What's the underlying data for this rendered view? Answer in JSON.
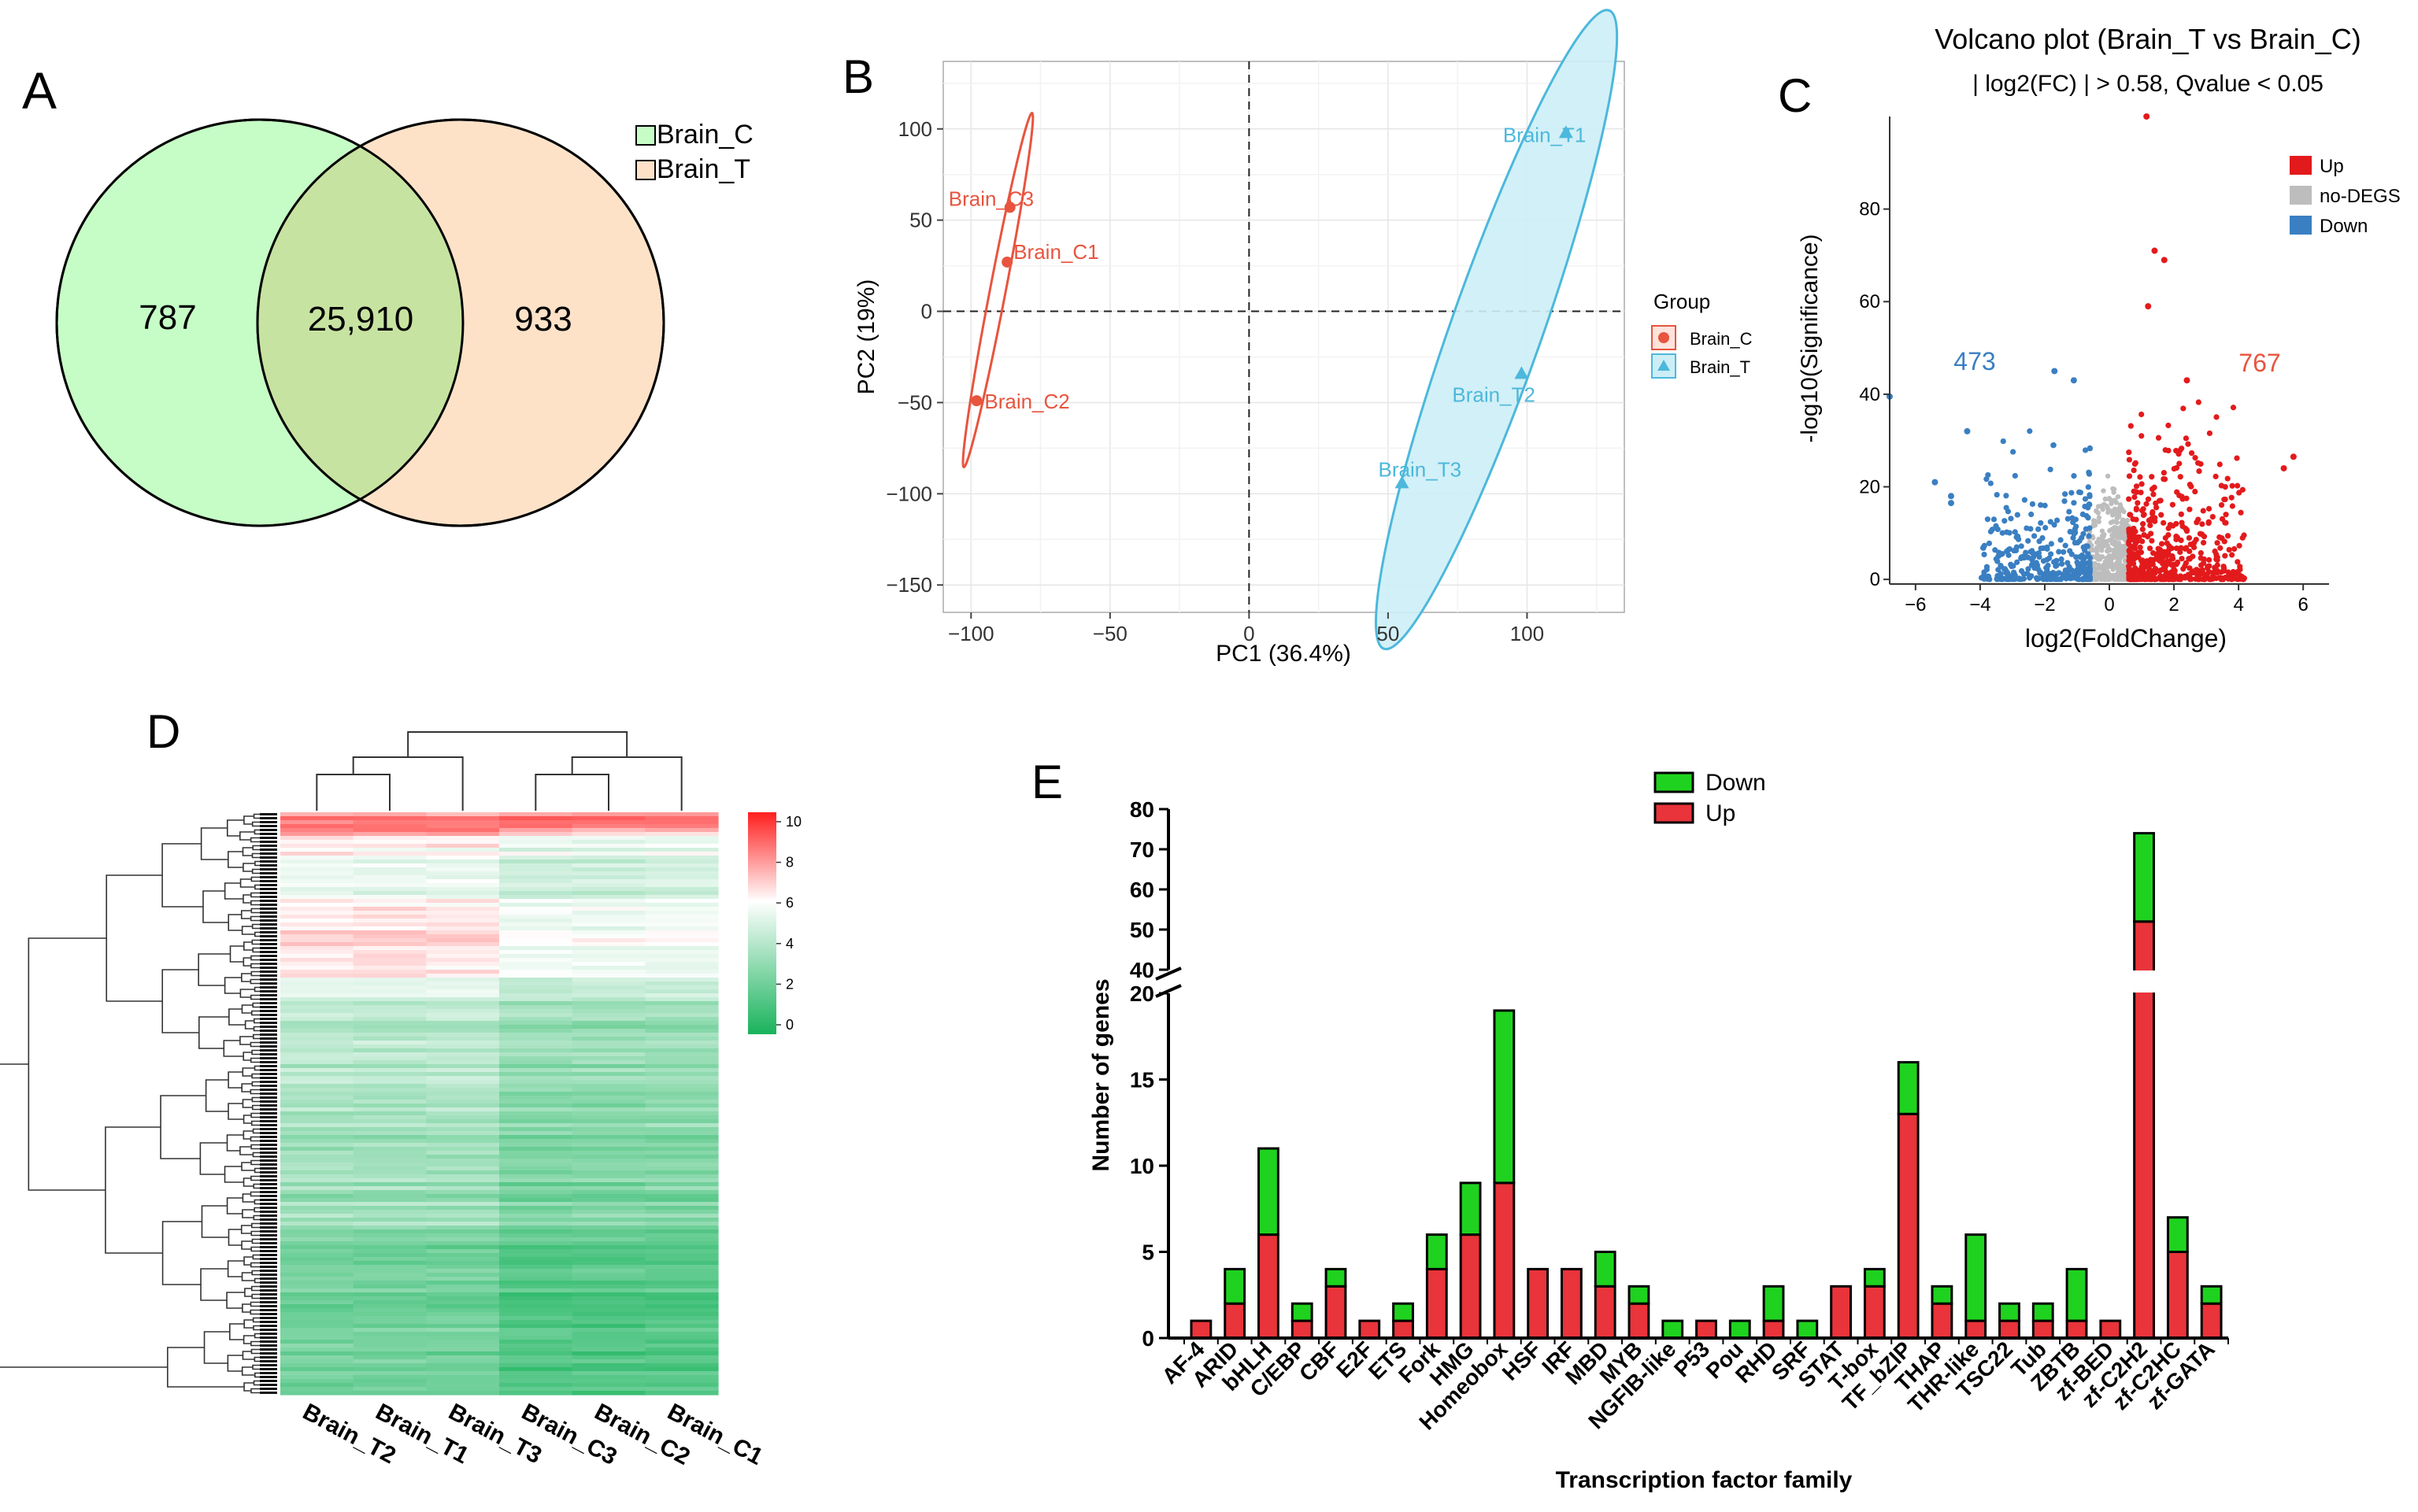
{
  "colors": {
    "venn_left": "#c6fdc6",
    "venn_right": "#fde2c8",
    "venn_overlap": "#c7e3a1",
    "pca_c": "#e8543e",
    "pca_t": "#4cb8dc",
    "pca_t_fill": "#cdeef6",
    "up": "#e31a1c",
    "down": "#3a7fc2",
    "nodeg": "#bdbdbd",
    "bar_up": "#e8343a",
    "bar_down": "#1fd21f",
    "heat_high": "#ff1e1e",
    "heat_mid": "#ffffff",
    "heat_low": "#19b35c"
  },
  "panels": {
    "a": "A",
    "b": "B",
    "c": "C",
    "d": "D",
    "e": "E"
  },
  "chart_data": [
    {
      "type": "venn",
      "panel": "A",
      "sets": [
        "Brain_C",
        "Brain_T"
      ],
      "legend": [
        "Brain_C",
        "Brain_T"
      ],
      "only_left": "787",
      "overlap": "25,910",
      "only_right": "933"
    },
    {
      "type": "scatter",
      "panel": "B",
      "xlabel": "PC1 (36.4%)",
      "ylabel": "PC2 (19%)",
      "xlim": [
        -110,
        135
      ],
      "ylim": [
        -165,
        137
      ],
      "xticks": [
        -100,
        -50,
        0,
        50,
        100
      ],
      "yticks": [
        -150,
        -100,
        -50,
        0,
        50,
        100
      ],
      "xtick_labels": [
        "−100",
        "−50",
        "0",
        "50",
        "100"
      ],
      "ytick_labels": [
        "−150",
        "−100",
        "−50",
        "0",
        "50",
        "100"
      ],
      "legend_title": "Group",
      "groups": [
        {
          "name": "Brain_C",
          "points": [
            {
              "label": "Brain_C3",
              "x": -86,
              "y": 57
            },
            {
              "label": "Brain_C1",
              "x": -87,
              "y": 27
            },
            {
              "label": "Brain_C2",
              "x": -98,
              "y": -49
            }
          ]
        },
        {
          "name": "Brain_T",
          "points": [
            {
              "label": "Brain_T1",
              "x": 114,
              "y": 98
            },
            {
              "label": "Brain_T2",
              "x": 98,
              "y": -34
            },
            {
              "label": "Brain_T3",
              "x": 55,
              "y": -94
            }
          ]
        }
      ]
    },
    {
      "type": "scatter",
      "panel": "C",
      "title": "Volcano plot (Brain_T vs Brain_C)",
      "subtitle": "| log2(FC) | > 0.58, Qvalue < 0.05",
      "xlabel": "log2(FoldChange)",
      "ylabel": "-log10(Significance)",
      "xlim": [
        -6.8,
        6.8
      ],
      "ylim": [
        -1,
        100
      ],
      "xticks": [
        -6,
        -4,
        -2,
        0,
        2,
        4,
        6
      ],
      "yticks": [
        0,
        20,
        40,
        60,
        80
      ],
      "legend": [
        "Up",
        "no-DEGS",
        "Down"
      ],
      "down_count": "473",
      "up_count": "767",
      "highlighted_points": [
        {
          "x": 1.15,
          "y": 100
        },
        {
          "x": 1.4,
          "y": 71
        },
        {
          "x": 1.7,
          "y": 69
        },
        {
          "x": 1.2,
          "y": 59
        },
        {
          "x": 2.4,
          "y": 43
        },
        {
          "x": 5.7,
          "y": 26.5
        },
        {
          "x": 5.4,
          "y": 24
        },
        {
          "x": -1.7,
          "y": 45
        },
        {
          "x": -1.1,
          "y": 43
        },
        {
          "x": -4.4,
          "y": 32
        },
        {
          "x": -5.4,
          "y": 21
        },
        {
          "x": -4.9,
          "y": 18
        },
        {
          "x": -4.9,
          "y": 16.5
        },
        {
          "x": -6.8,
          "y": 39.5
        }
      ]
    },
    {
      "type": "heatmap",
      "panel": "D",
      "columns": [
        "Brain_T2",
        "Brain_T1",
        "Brain_T3",
        "Brain_C3",
        "Brain_C2",
        "Brain_C1"
      ],
      "scale_range": [
        0,
        10
      ],
      "scale_ticks": [
        "0",
        "2",
        "4",
        "6",
        "8",
        "10"
      ]
    },
    {
      "type": "bar",
      "panel": "E",
      "stacked": true,
      "xlabel": "Transcription factor family",
      "ylabel": "Number of genes",
      "y_break": [
        20,
        40
      ],
      "yticks_low": [
        "0",
        "5",
        "10",
        "15",
        "20"
      ],
      "yticks_high": [
        "40",
        "50",
        "60",
        "70",
        "80"
      ],
      "legend": [
        "Down",
        "Up"
      ],
      "categories": [
        "AF-4",
        "ARID",
        "bHLH",
        "C/EBP",
        "CBF",
        "E2F",
        "ETS",
        "Fork",
        "HMG",
        "Homeobox",
        "HSF",
        "IRF",
        "MBD",
        "MYB",
        "NGFIB-like",
        "P53",
        "Pou",
        "RHD",
        "SRF",
        "STAT",
        "T-box",
        "TF_bZIP",
        "THAP",
        "THR-like",
        "TSC22",
        "Tub",
        "ZBTB",
        "zf-BED",
        "zf-C2H2",
        "zf-C2HC",
        "zf-GATA"
      ],
      "series": [
        {
          "name": "Up",
          "values": [
            1,
            2,
            6,
            1,
            3,
            1,
            1,
            4,
            6,
            9,
            4,
            4,
            3,
            2,
            0,
            1,
            0,
            1,
            0,
            3,
            3,
            13,
            2,
            1,
            1,
            1,
            1,
            1,
            52,
            5,
            2
          ]
        },
        {
          "name": "Down",
          "values": [
            0,
            2,
            5,
            1,
            1,
            0,
            1,
            2,
            3,
            10,
            0,
            0,
            2,
            1,
            1,
            0,
            1,
            2,
            1,
            0,
            1,
            3,
            1,
            5,
            1,
            1,
            3,
            0,
            22,
            2,
            1
          ]
        }
      ]
    }
  ]
}
